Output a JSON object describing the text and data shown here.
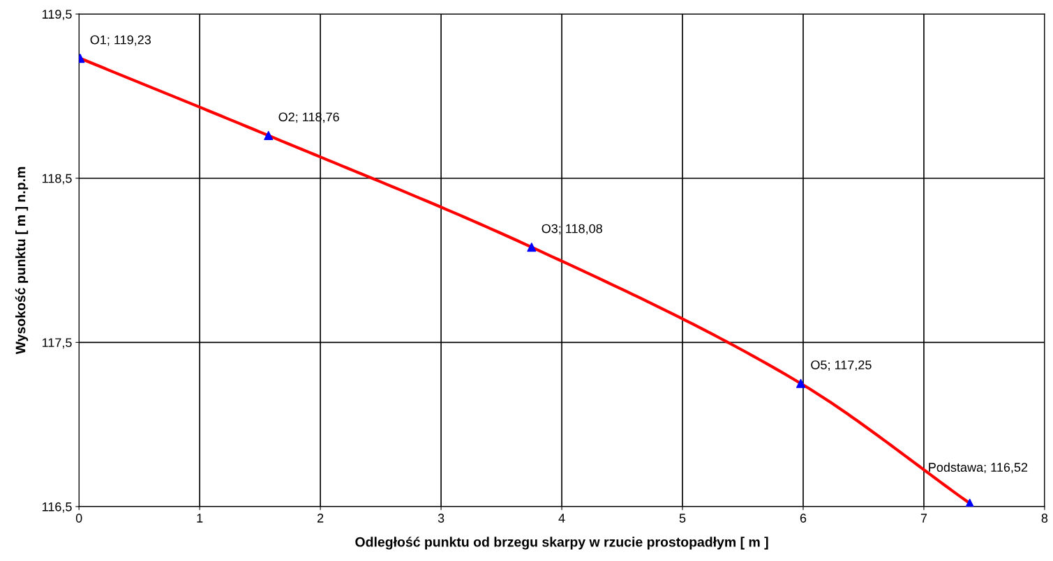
{
  "chart_data": {
    "type": "line",
    "xlabel": "Odległość punktu od brzegu skarpy w rzucie prostopadłym [ m ]",
    "ylabel": "Wysokość punktu [ m ] n.p.m",
    "x": [
      0.01,
      1.57,
      3.75,
      5.98,
      7.38
    ],
    "series": [
      {
        "color": "#ff0000",
        "marker": "none",
        "values": [
          119.23,
          118.76,
          118.08,
          117.25,
          116.52
        ]
      },
      {
        "type": "scatter",
        "color": "#0000ff",
        "marker": "triangle",
        "values": [
          119.23,
          118.76,
          118.08,
          117.25,
          116.52
        ]
      }
    ],
    "annotations": [
      {
        "text": "O1; 119,23",
        "x": 0.01,
        "y": 119.23
      },
      {
        "text": "O2; 118,76",
        "x": 1.57,
        "y": 118.76
      },
      {
        "text": "O3; 118,08",
        "x": 3.75,
        "y": 118.08
      },
      {
        "text": "O5; 117,25",
        "x": 5.98,
        "y": 117.25
      },
      {
        "text": "Podstawa; 116,52",
        "x": 7.38,
        "y": 116.52
      }
    ],
    "xlim": [
      0,
      8
    ],
    "xticks": [
      0,
      1,
      2,
      3,
      4,
      5,
      6,
      7,
      8
    ],
    "ylim": [
      116.5,
      119.5
    ],
    "yticks": [
      {
        "value": 116.5,
        "label": "116,5"
      },
      {
        "value": 117.5,
        "label": "117,5"
      },
      {
        "value": 118.5,
        "label": "118,5"
      },
      {
        "value": 119.5,
        "label": "119,5"
      }
    ],
    "grid": true,
    "legend": false
  }
}
